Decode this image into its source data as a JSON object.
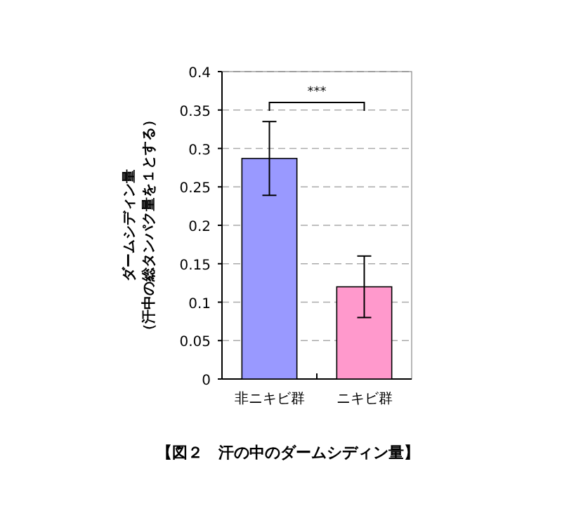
{
  "chart_data": {
    "type": "bar",
    "ylabel": "ダームシディン量（汗中の総タンパク量を１とする）",
    "categories": [
      "非ニキビ群",
      "ニキビ群"
    ],
    "values": [
      0.287,
      0.12
    ],
    "colors": [
      "#9999ff",
      "#ff99cc"
    ],
    "errors": [
      0.048,
      0.04
    ],
    "ylim": [
      0,
      0.4
    ],
    "yticks": [
      0,
      0.05,
      0.1,
      0.15,
      0.2,
      0.25,
      0.3,
      0.35,
      0.4
    ],
    "grid": "y",
    "annotations": [
      "***",
      "【図２　汗の中のダームシディン量】"
    ]
  }
}
